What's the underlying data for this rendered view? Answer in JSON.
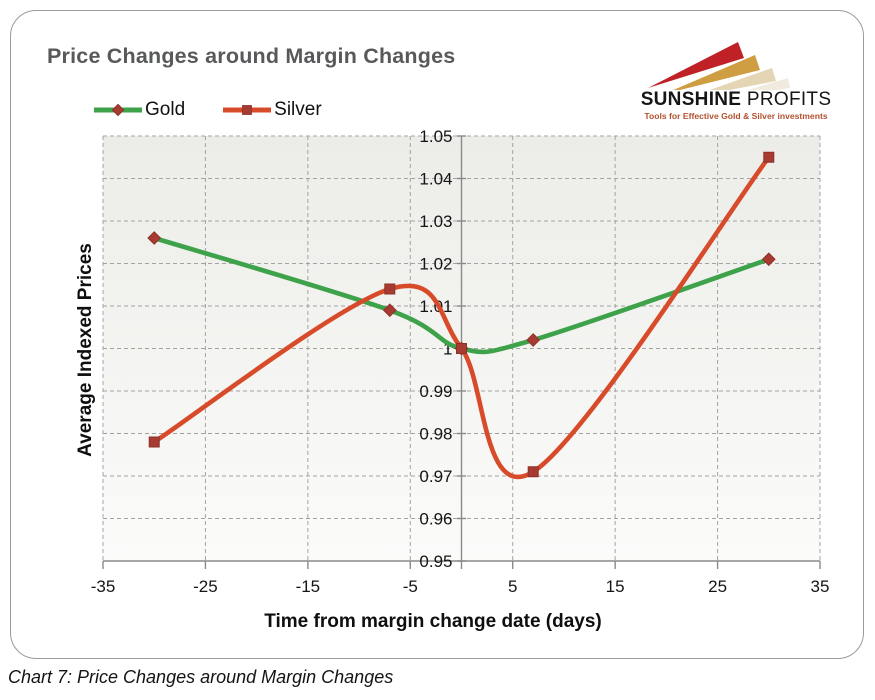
{
  "page": {
    "caption": "Chart 7: Price Changes around Margin Changes"
  },
  "brand": {
    "name_bold": "SUNSHINE",
    "name_regular": "PROFITS",
    "tagline": "Tools for Effective Gold & Silver investments",
    "arrow_colors": [
      "#bf2127",
      "#d09e42",
      "#e4d5b4",
      "#f0eadf"
    ],
    "tagline_color": "#b2502e"
  },
  "chart_data": {
    "type": "line",
    "title": "Price Changes around Margin Changes",
    "xlabel": "Time from margin change date (days)",
    "ylabel": "Average Indexed Prices",
    "xlim": [
      -35,
      35
    ],
    "ylim": [
      0.95,
      1.05
    ],
    "x_ticks": [
      -35,
      -25,
      -15,
      -5,
      5,
      15,
      25,
      35
    ],
    "y_ticks": [
      0.95,
      0.96,
      0.97,
      0.98,
      0.99,
      1,
      1.01,
      1.02,
      1.03,
      1.04,
      1.05
    ],
    "grid": "dashed",
    "smooth": true,
    "legend_position": "top-left",
    "axis_color": "#8a8a8a",
    "grid_color": "#a3a3a3",
    "series": [
      {
        "name": "Gold",
        "color": "#3da24a",
        "marker": "diamond",
        "marker_color": "#a73b31",
        "x": [
          -30,
          -7,
          0,
          7,
          30
        ],
        "y": [
          1.026,
          1.009,
          1.0,
          1.002,
          1.021
        ]
      },
      {
        "name": "Silver",
        "color": "#d74b2b",
        "marker": "square",
        "marker_color": "#a73b31",
        "x": [
          -30,
          -7,
          0,
          7,
          30
        ],
        "y": [
          0.978,
          1.014,
          1.0,
          0.971,
          1.045
        ]
      }
    ]
  }
}
